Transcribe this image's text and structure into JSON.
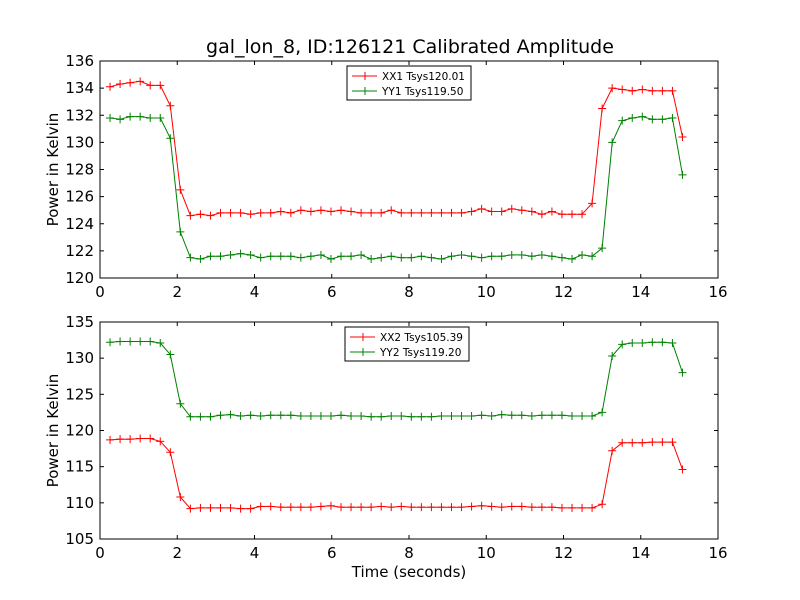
{
  "figure": {
    "title": "gal_lon_8, ID:126121 Calibrated Amplitude"
  },
  "chart_data": [
    {
      "type": "line",
      "title": "gal_lon_8, ID:126121 Calibrated Amplitude",
      "xlabel": "",
      "ylabel": "Power in Kelvin",
      "xlim": [
        0,
        16
      ],
      "ylim": [
        120,
        136
      ],
      "xticks": [
        0,
        2,
        4,
        6,
        8,
        10,
        12,
        14,
        16
      ],
      "yticks": [
        120,
        122,
        124,
        126,
        128,
        130,
        132,
        134,
        136
      ],
      "grid": false,
      "legend_position": "top-center",
      "x": [
        0.26,
        0.52,
        0.78,
        1.04,
        1.3,
        1.56,
        1.82,
        2.08,
        2.34,
        2.6,
        2.86,
        3.12,
        3.38,
        3.64,
        3.9,
        4.16,
        4.42,
        4.68,
        4.94,
        5.2,
        5.46,
        5.72,
        5.98,
        6.24,
        6.5,
        6.76,
        7.02,
        7.28,
        7.54,
        7.8,
        8.06,
        8.32,
        8.58,
        8.84,
        9.1,
        9.36,
        9.62,
        9.88,
        10.14,
        10.4,
        10.66,
        10.92,
        11.18,
        11.44,
        11.7,
        11.96,
        12.22,
        12.48,
        12.74,
        13.0,
        13.26,
        13.52,
        13.78,
        14.04,
        14.3,
        14.56,
        14.82,
        15.08
      ],
      "series": [
        {
          "name": "XX1 Tsys120.01",
          "color": "#ff0000",
          "values": [
            134.1,
            134.3,
            134.4,
            134.5,
            134.2,
            134.2,
            132.7,
            126.5,
            124.6,
            124.7,
            124.6,
            124.8,
            124.8,
            124.8,
            124.7,
            124.8,
            124.8,
            124.9,
            124.8,
            125.0,
            124.9,
            125.0,
            124.9,
            125.0,
            124.9,
            124.8,
            124.8,
            124.8,
            125.0,
            124.8,
            124.8,
            124.8,
            124.8,
            124.8,
            124.8,
            124.8,
            124.9,
            125.1,
            124.9,
            124.9,
            125.1,
            125.0,
            124.9,
            124.7,
            124.9,
            124.7,
            124.7,
            124.7,
            125.5,
            132.5,
            134.0,
            133.9,
            133.8,
            133.9,
            133.8,
            133.8,
            133.8,
            130.4
          ]
        },
        {
          "name": "YY1 Tsys119.50",
          "color": "#008000",
          "values": [
            131.8,
            131.7,
            131.9,
            131.9,
            131.8,
            131.8,
            130.3,
            123.4,
            121.5,
            121.4,
            121.6,
            121.6,
            121.7,
            121.8,
            121.7,
            121.5,
            121.6,
            121.6,
            121.6,
            121.5,
            121.6,
            121.7,
            121.4,
            121.6,
            121.6,
            121.7,
            121.4,
            121.5,
            121.6,
            121.5,
            121.5,
            121.6,
            121.5,
            121.4,
            121.6,
            121.7,
            121.6,
            121.5,
            121.6,
            121.6,
            121.7,
            121.7,
            121.6,
            121.7,
            121.6,
            121.5,
            121.4,
            121.7,
            121.6,
            122.2,
            130.0,
            131.6,
            131.8,
            131.9,
            131.7,
            131.7,
            131.8,
            127.6
          ]
        }
      ]
    },
    {
      "type": "line",
      "title": "",
      "xlabel": "Time (seconds)",
      "ylabel": "Power in Kelvin",
      "xlim": [
        0,
        16
      ],
      "ylim": [
        105,
        135
      ],
      "xticks": [
        0,
        2,
        4,
        6,
        8,
        10,
        12,
        14,
        16
      ],
      "yticks": [
        105,
        110,
        115,
        120,
        125,
        130,
        135
      ],
      "grid": false,
      "legend_position": "top-center",
      "x": [
        0.26,
        0.52,
        0.78,
        1.04,
        1.3,
        1.56,
        1.82,
        2.08,
        2.34,
        2.6,
        2.86,
        3.12,
        3.38,
        3.64,
        3.9,
        4.16,
        4.42,
        4.68,
        4.94,
        5.2,
        5.46,
        5.72,
        5.98,
        6.24,
        6.5,
        6.76,
        7.02,
        7.28,
        7.54,
        7.8,
        8.06,
        8.32,
        8.58,
        8.84,
        9.1,
        9.36,
        9.62,
        9.88,
        10.14,
        10.4,
        10.66,
        10.92,
        11.18,
        11.44,
        11.7,
        11.96,
        12.22,
        12.48,
        12.74,
        13.0,
        13.26,
        13.52,
        13.78,
        14.04,
        14.3,
        14.56,
        14.82,
        15.08
      ],
      "series": [
        {
          "name": "XX2 Tsys105.39",
          "color": "#ff0000",
          "values": [
            118.7,
            118.8,
            118.8,
            118.9,
            118.9,
            118.5,
            117.0,
            110.8,
            109.2,
            109.3,
            109.3,
            109.3,
            109.3,
            109.2,
            109.2,
            109.5,
            109.5,
            109.4,
            109.4,
            109.4,
            109.4,
            109.5,
            109.6,
            109.4,
            109.4,
            109.4,
            109.4,
            109.5,
            109.4,
            109.5,
            109.4,
            109.4,
            109.4,
            109.4,
            109.4,
            109.4,
            109.5,
            109.6,
            109.5,
            109.4,
            109.5,
            109.5,
            109.4,
            109.4,
            109.4,
            109.3,
            109.3,
            109.3,
            109.3,
            109.8,
            117.2,
            118.3,
            118.3,
            118.3,
            118.4,
            118.4,
            118.4,
            114.6
          ]
        },
        {
          "name": "YY2 Tsys119.20",
          "color": "#008000",
          "values": [
            132.2,
            132.3,
            132.3,
            132.3,
            132.3,
            132.1,
            130.5,
            123.7,
            121.9,
            121.9,
            121.9,
            122.1,
            122.2,
            122.0,
            122.1,
            122.0,
            122.1,
            122.1,
            122.1,
            122.0,
            122.0,
            122.0,
            122.0,
            122.1,
            122.0,
            122.0,
            121.9,
            121.9,
            122.0,
            122.0,
            121.9,
            121.9,
            121.9,
            122.0,
            122.0,
            122.0,
            122.0,
            122.1,
            122.0,
            122.2,
            122.1,
            122.1,
            122.0,
            122.1,
            122.1,
            122.1,
            122.0,
            122.0,
            122.0,
            122.5,
            130.3,
            131.9,
            132.1,
            132.1,
            132.2,
            132.2,
            132.1,
            128.0
          ]
        }
      ]
    }
  ]
}
